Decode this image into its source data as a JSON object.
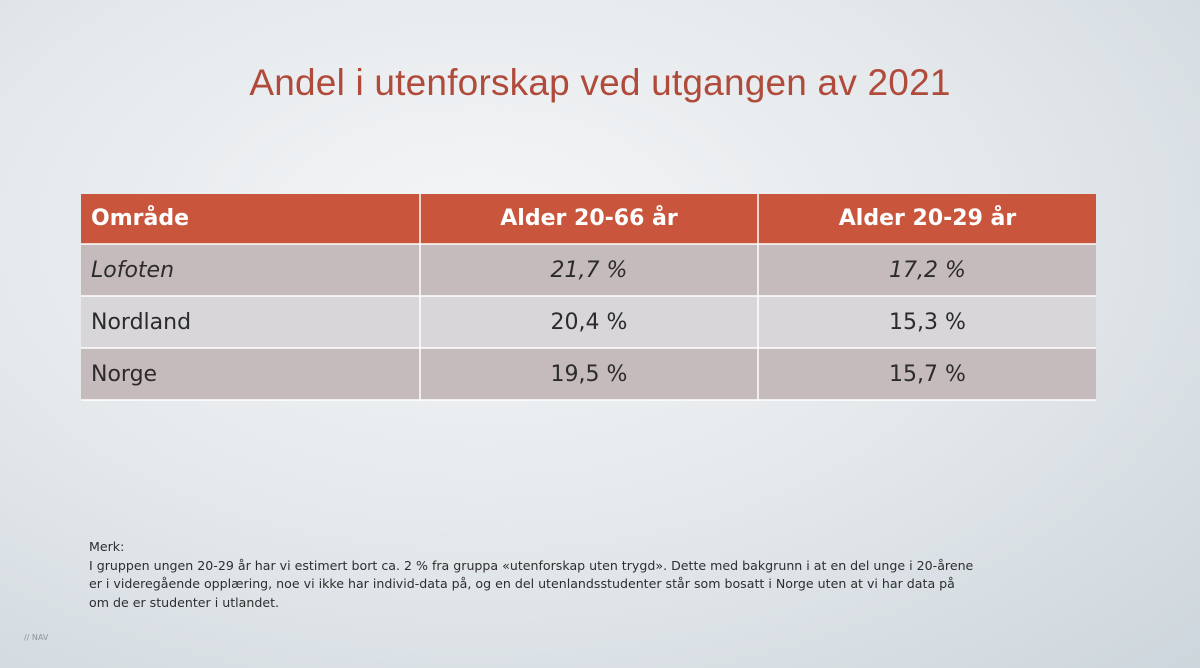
{
  "title": "Andel i utenforskap ved utgangen av 2021",
  "table": {
    "headers": [
      "Område",
      "Alder 20-66 år",
      "Alder 20-29 år"
    ],
    "rows": [
      {
        "area": "Lofoten",
        "age_20_66": "21,7 %",
        "age_20_29": "17,2 %"
      },
      {
        "area": "Nordland",
        "age_20_66": "20,4 %",
        "age_20_29": "15,3 %"
      },
      {
        "area": "Norge",
        "age_20_66": "19,5 %",
        "age_20_29": "15,7 %"
      }
    ]
  },
  "note": {
    "heading": "Merk:",
    "text": "I gruppen ungen 20-29 år har vi estimert bort ca. 2 % fra gruppa «utenforskap uten trygd». Dette med bakgrunn i at en del unge i 20-årene\ner i videregående opplæring, noe vi ikke har individ-data på, og en del utenlandsstudenter står som bosatt i Norge uten at vi har data på\nom de er studenter i utlandet."
  },
  "footer": {
    "logo_text": "// NAV"
  }
}
